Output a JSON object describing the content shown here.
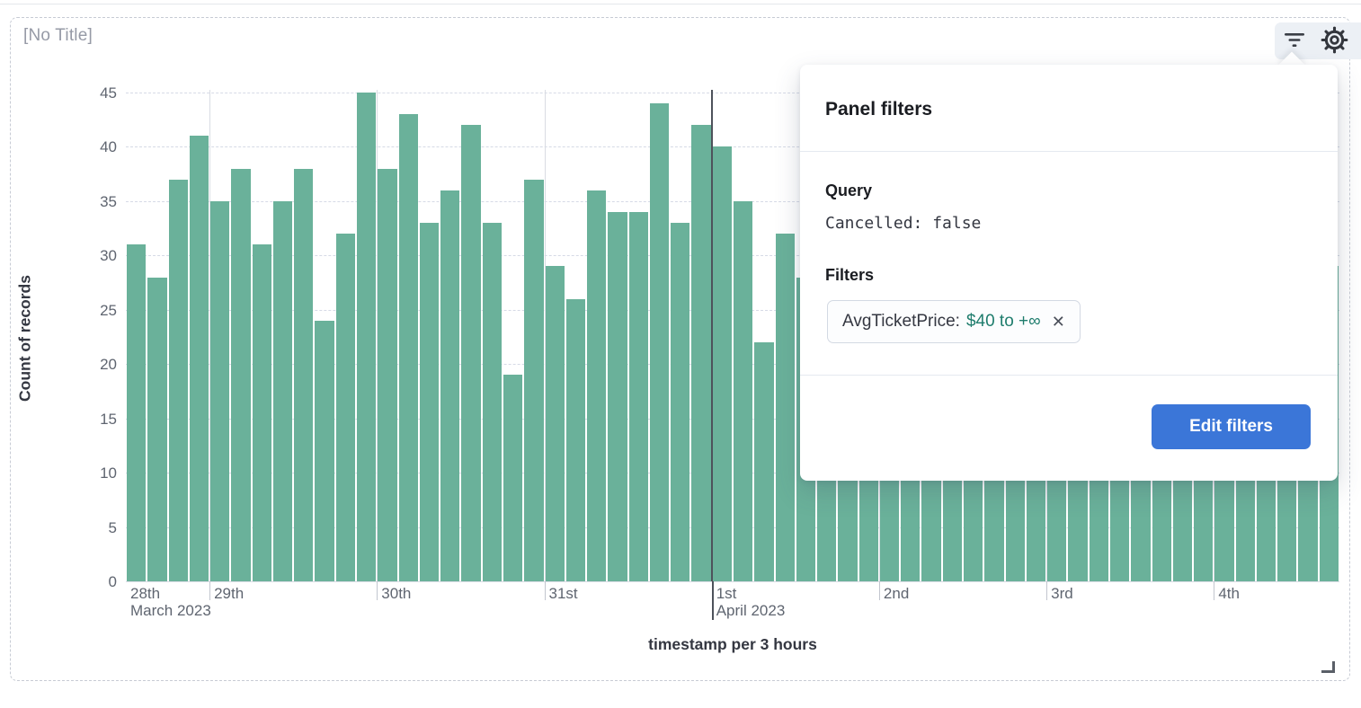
{
  "panel": {
    "title": "[No Title]"
  },
  "toolbar": {
    "filter_icon": "filter-lines",
    "gear_icon": "gear"
  },
  "popover": {
    "title": "Panel filters",
    "query_label": "Query",
    "query_value": "Cancelled: false",
    "filters_label": "Filters",
    "pill": {
      "field": "AvgTicketPrice:",
      "value": "$40 to +∞",
      "close_icon": "✕"
    },
    "edit_filters_label": "Edit filters"
  },
  "colors": {
    "bar": "#6ab19a",
    "primary_button": "#3b76d8",
    "pill_value": "#1f7d6d"
  },
  "chart_data": {
    "type": "bar",
    "title": "",
    "ylabel": "Count of records",
    "xlabel": "timestamp per 3 hours",
    "ylim": [
      0,
      45
    ],
    "yticks": [
      0,
      5,
      10,
      15,
      20,
      25,
      30,
      35,
      40,
      45
    ],
    "grid": "horizontal-dashed",
    "bucket": "3 hours",
    "day_ticks": [
      {
        "label": "28th",
        "sublabel": "March 2023",
        "bar_index": 0,
        "line": false,
        "emphasis": false
      },
      {
        "label": "29th",
        "sublabel": "",
        "bar_index": 4,
        "line": true,
        "emphasis": false
      },
      {
        "label": "30th",
        "sublabel": "",
        "bar_index": 12,
        "line": true,
        "emphasis": false
      },
      {
        "label": "31st",
        "sublabel": "",
        "bar_index": 20,
        "line": true,
        "emphasis": false
      },
      {
        "label": "1st",
        "sublabel": "April 2023",
        "bar_index": 28,
        "line": true,
        "emphasis": true
      },
      {
        "label": "2nd",
        "sublabel": "",
        "bar_index": 36,
        "line": true,
        "emphasis": false
      },
      {
        "label": "3rd",
        "sublabel": "",
        "bar_index": 44,
        "line": true,
        "emphasis": false
      },
      {
        "label": "4th",
        "sublabel": "",
        "bar_index": 52,
        "line": true,
        "emphasis": false
      }
    ],
    "values": [
      31,
      28,
      37,
      41,
      35,
      38,
      31,
      35,
      38,
      24,
      32,
      45,
      38,
      43,
      33,
      36,
      42,
      33,
      19,
      37,
      29,
      26,
      36,
      34,
      34,
      44,
      33,
      42,
      40,
      35,
      22,
      32,
      28,
      30,
      33,
      27,
      31,
      28,
      34,
      30,
      26,
      33,
      29,
      35,
      32,
      27,
      30,
      34,
      28,
      31,
      25,
      33,
      30,
      28,
      32,
      27,
      31,
      29
    ]
  }
}
